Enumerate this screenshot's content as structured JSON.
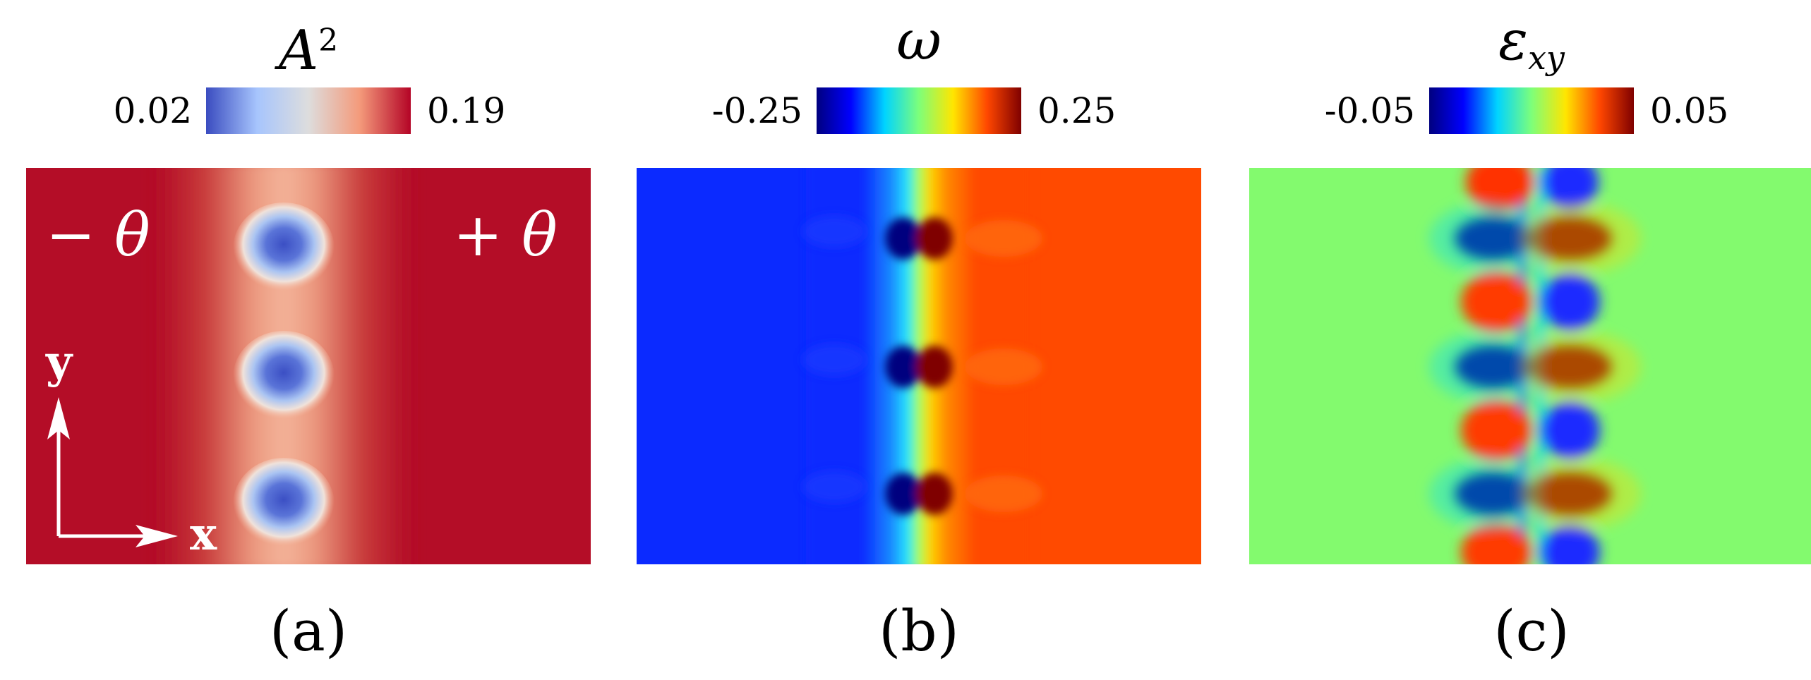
{
  "panels": [
    {
      "label": "(a)",
      "colorbar": {
        "title": "A",
        "title_sup": "2",
        "min": "0.02",
        "max": "0.19",
        "colors": [
          "#3a4cc0",
          "#a7c5fd",
          "#dddddd",
          "#f49a7b",
          "#b40426"
        ]
      },
      "left_annotation": "− θ",
      "right_annotation": "+ θ",
      "axes": {
        "y": "y",
        "x": "x"
      },
      "background_color": "#b40d27"
    },
    {
      "label": "(b)",
      "colorbar": {
        "title": "ω",
        "min": "-0.25",
        "max": "0.25",
        "colors": [
          "#00007f",
          "#0000ff",
          "#00d4ff",
          "#7dff7a",
          "#ffe600",
          "#ff4700",
          "#7f0000"
        ]
      },
      "left_color": "#0b2aff",
      "right_color": "#ff4a00"
    },
    {
      "label": "(c)",
      "colorbar": {
        "title": "ε",
        "title_sub": "xy",
        "min": "-0.05",
        "max": "0.05",
        "colors": [
          "#00007f",
          "#0000ff",
          "#00d4ff",
          "#7dff7a",
          "#ffe600",
          "#ff4700",
          "#7f0000"
        ]
      },
      "background_color": "#83fa6e"
    }
  ]
}
